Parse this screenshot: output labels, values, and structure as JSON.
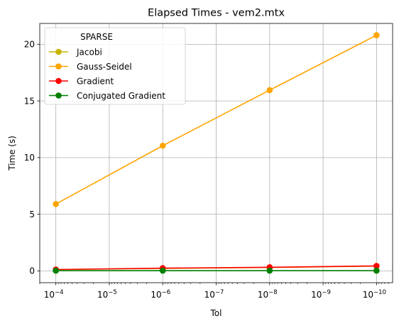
{
  "chart_data": {
    "type": "line",
    "title": "Elapsed Times - vem2.mtx",
    "xlabel": "Tol",
    "ylabel": "Time (s)",
    "x": [
      0.0001,
      1e-06,
      1e-08,
      1e-10
    ],
    "x_scale": "log",
    "x_reversed": true,
    "xlim": [
      0.0002,
      5e-11
    ],
    "ylim": [
      -1.04,
      21.84
    ],
    "grid": true,
    "legend_title": "SPARSE",
    "legend_position": "upper-left",
    "x_ticks": [
      {
        "value": 0.0001,
        "mantissa": "10",
        "exp": "−4"
      },
      {
        "value": 1e-05,
        "mantissa": "10",
        "exp": "−5"
      },
      {
        "value": 1e-06,
        "mantissa": "10",
        "exp": "−6"
      },
      {
        "value": 1e-07,
        "mantissa": "10",
        "exp": "−7"
      },
      {
        "value": 1e-08,
        "mantissa": "10",
        "exp": "−8"
      },
      {
        "value": 1e-09,
        "mantissa": "10",
        "exp": "−9"
      },
      {
        "value": 1e-10,
        "mantissa": "10",
        "exp": "−10"
      }
    ],
    "y_ticks": [
      {
        "value": 0,
        "label": "0"
      },
      {
        "value": 5,
        "label": "5"
      },
      {
        "value": 10,
        "label": "10"
      },
      {
        "value": 15,
        "label": "15"
      },
      {
        "value": 20,
        "label": "20"
      }
    ],
    "series": [
      {
        "name": "Jacobi",
        "color": "#c8b400",
        "values": [
          0.12,
          0.22,
          0.3,
          0.42
        ]
      },
      {
        "name": "Gauss-Seidel",
        "color": "#ffa500",
        "values": [
          5.9,
          11.05,
          15.95,
          20.8
        ]
      },
      {
        "name": "Gradient",
        "color": "#ff0000",
        "values": [
          0.12,
          0.24,
          0.32,
          0.44
        ]
      },
      {
        "name": "Conjugated Gradient",
        "color": "#008000",
        "values": [
          0.02,
          0.02,
          0.02,
          0.02
        ]
      }
    ]
  }
}
